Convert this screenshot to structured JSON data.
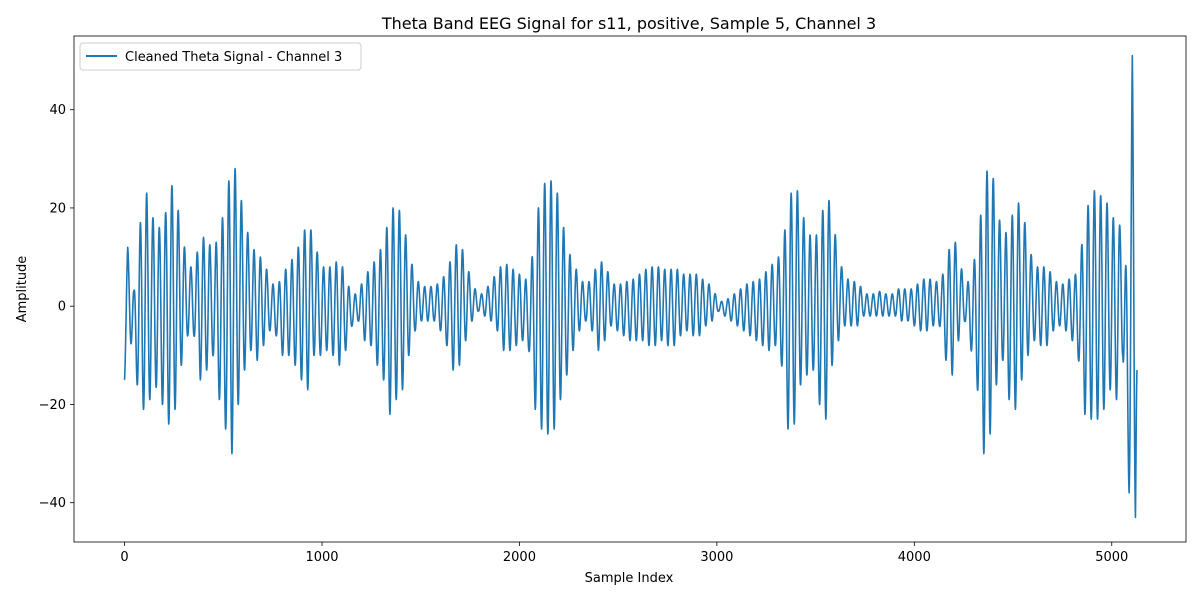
{
  "chart_data": {
    "type": "line",
    "title": "Theta Band EEG Signal for s11, positive, Sample 5, Channel 3",
    "xlabel": "Sample Index",
    "ylabel": "Amplitude",
    "xlim": [
      -256,
      5376
    ],
    "ylim": [
      -48,
      55
    ],
    "xticks": [
      0,
      1000,
      2000,
      3000,
      4000,
      5000
    ],
    "yticks": [
      -40,
      -20,
      0,
      20,
      40
    ],
    "xtick_labels": [
      "0",
      "1000",
      "2000",
      "3000",
      "4000",
      "5000"
    ],
    "ytick_labels": [
      "−40",
      "−20",
      "0",
      "20",
      "40"
    ],
    "grid": false,
    "legend_position": "top-left",
    "series": [
      {
        "name": "Cleaned Theta Signal - Channel 3",
        "color": "#1f77b4",
        "cycle_length": 32,
        "envelope_keyframes": [
          [
            0,
            -1,
            -15
          ],
          [
            16,
            12,
            -3
          ],
          [
            48,
            3,
            -12
          ],
          [
            80,
            17,
            -20
          ],
          [
            112,
            23,
            -22
          ],
          [
            144,
            18,
            -16
          ],
          [
            176,
            16,
            -17
          ],
          [
            208,
            19,
            -23
          ],
          [
            224,
            26,
            -24
          ],
          [
            256,
            23,
            -21
          ],
          [
            288,
            16,
            -12
          ],
          [
            320,
            8,
            -6
          ],
          [
            352,
            8,
            -6
          ],
          [
            384,
            14,
            -15
          ],
          [
            416,
            14,
            -13
          ],
          [
            448,
            11,
            -10
          ],
          [
            480,
            15,
            -19
          ],
          [
            512,
            21,
            -25
          ],
          [
            544,
            30,
            -30
          ],
          [
            576,
            26,
            -20
          ],
          [
            608,
            17,
            -13
          ],
          [
            640,
            13,
            -9
          ],
          [
            672,
            10,
            -11
          ],
          [
            704,
            10,
            -8
          ],
          [
            736,
            5,
            -5
          ],
          [
            768,
            4,
            -6
          ],
          [
            800,
            6,
            -10
          ],
          [
            832,
            9,
            -10
          ],
          [
            864,
            10,
            -12
          ],
          [
            896,
            14,
            -15
          ],
          [
            928,
            17,
            -17
          ],
          [
            960,
            14,
            -10
          ],
          [
            992,
            8,
            -10
          ],
          [
            1024,
            8,
            -9
          ],
          [
            1056,
            8,
            -10
          ],
          [
            1088,
            10,
            -12
          ],
          [
            1120,
            6,
            -9
          ],
          [
            1152,
            2,
            -4
          ],
          [
            1184,
            3,
            -3
          ],
          [
            1216,
            6,
            -7
          ],
          [
            1248,
            8,
            -8
          ],
          [
            1280,
            10,
            -12
          ],
          [
            1312,
            13,
            -15
          ],
          [
            1344,
            19,
            -22
          ],
          [
            1376,
            21,
            -19
          ],
          [
            1408,
            18,
            -17
          ],
          [
            1440,
            11,
            -10
          ],
          [
            1472,
            6,
            -5
          ],
          [
            1504,
            4,
            -3
          ],
          [
            1536,
            4,
            -3
          ],
          [
            1568,
            4,
            -3
          ],
          [
            1600,
            5,
            -5
          ],
          [
            1632,
            7,
            -8
          ],
          [
            1664,
            11,
            -13
          ],
          [
            1696,
            14,
            -12
          ],
          [
            1728,
            9,
            -7
          ],
          [
            1760,
            5,
            -3
          ],
          [
            1792,
            2,
            -1
          ],
          [
            1824,
            3,
            -2
          ],
          [
            1856,
            5,
            -3
          ],
          [
            1888,
            7,
            -5
          ],
          [
            1920,
            9,
            -9
          ],
          [
            1952,
            8,
            -9
          ],
          [
            1984,
            7,
            -8
          ],
          [
            2016,
            6,
            -7
          ],
          [
            2048,
            5,
            -9
          ],
          [
            2080,
            15,
            -21
          ],
          [
            2112,
            25,
            -25
          ],
          [
            2144,
            25,
            -26
          ],
          [
            2176,
            26,
            -25
          ],
          [
            2208,
            20,
            -19
          ],
          [
            2240,
            12,
            -14
          ],
          [
            2272,
            9,
            -9
          ],
          [
            2304,
            6,
            -5
          ],
          [
            2336,
            4,
            -3
          ],
          [
            2368,
            6,
            -5
          ],
          [
            2400,
            9,
            -9
          ],
          [
            2432,
            9,
            -7
          ],
          [
            2464,
            5,
            -4
          ],
          [
            2496,
            4,
            -5
          ],
          [
            2528,
            5,
            -6
          ],
          [
            2560,
            5,
            -7
          ],
          [
            2592,
            6,
            -7
          ],
          [
            2624,
            7,
            -7
          ],
          [
            2656,
            8,
            -8
          ],
          [
            2688,
            8,
            -8
          ],
          [
            2720,
            8,
            -7
          ],
          [
            2752,
            7,
            -8
          ],
          [
            2784,
            8,
            -8
          ],
          [
            2816,
            7,
            -6
          ],
          [
            2848,
            6,
            -5
          ],
          [
            2880,
            7,
            -6
          ],
          [
            2912,
            6,
            -6
          ],
          [
            2944,
            5,
            -4
          ],
          [
            2976,
            4,
            -3
          ],
          [
            3008,
            1,
            -1
          ],
          [
            3040,
            1,
            -2
          ],
          [
            3072,
            2,
            -3
          ],
          [
            3104,
            3,
            -4
          ],
          [
            3136,
            4,
            -5
          ],
          [
            3168,
            5,
            -6
          ],
          [
            3200,
            5,
            -7
          ],
          [
            3232,
            6,
            -8
          ],
          [
            3264,
            8,
            -9
          ],
          [
            3296,
            9,
            -8
          ],
          [
            3328,
            11,
            -12
          ],
          [
            3360,
            20,
            -25
          ],
          [
            3392,
            26,
            -24
          ],
          [
            3424,
            21,
            -16
          ],
          [
            3456,
            15,
            -14
          ],
          [
            3488,
            14,
            -13
          ],
          [
            3520,
            15,
            -20
          ],
          [
            3552,
            24,
            -23
          ],
          [
            3584,
            19,
            -12
          ],
          [
            3616,
            10,
            -7
          ],
          [
            3648,
            6,
            -4
          ],
          [
            3680,
            5,
            -4
          ],
          [
            3712,
            5,
            -4
          ],
          [
            3744,
            3,
            -2
          ],
          [
            3776,
            2,
            -2
          ],
          [
            3808,
            3,
            -2
          ],
          [
            3840,
            3,
            -2
          ],
          [
            3872,
            2,
            -2
          ],
          [
            3904,
            3,
            -2
          ],
          [
            3936,
            4,
            -3
          ],
          [
            3968,
            3,
            -3
          ],
          [
            4000,
            4,
            -4
          ],
          [
            4032,
            5,
            -5
          ],
          [
            4064,
            6,
            -5
          ],
          [
            4096,
            5,
            -4
          ],
          [
            4128,
            5,
            -4
          ],
          [
            4160,
            8,
            -11
          ],
          [
            4192,
            15,
            -14
          ],
          [
            4224,
            11,
            -7
          ],
          [
            4256,
            4,
            -3
          ],
          [
            4288,
            6,
            -9
          ],
          [
            4320,
            13,
            -17
          ],
          [
            4352,
            24,
            -30
          ],
          [
            4384,
            31,
            -26
          ],
          [
            4416,
            21,
            -16
          ],
          [
            4448,
            14,
            -11
          ],
          [
            4480,
            16,
            -19
          ],
          [
            4512,
            21,
            -21
          ],
          [
            4544,
            21,
            -15
          ],
          [
            4576,
            13,
            -10
          ],
          [
            4608,
            8,
            -7
          ],
          [
            4640,
            8,
            -8
          ],
          [
            4672,
            8,
            -8
          ],
          [
            4704,
            6,
            -5
          ],
          [
            4736,
            4,
            -4
          ],
          [
            4768,
            5,
            -5
          ],
          [
            4800,
            6,
            -7
          ],
          [
            4832,
            7,
            -11
          ],
          [
            4864,
            18,
            -22
          ],
          [
            4896,
            23,
            -23
          ],
          [
            4928,
            24,
            -23
          ],
          [
            4960,
            21,
            -21
          ],
          [
            4992,
            21,
            -17
          ],
          [
            5024,
            15,
            -19
          ],
          [
            5056,
            18,
            -10
          ],
          [
            5072,
            8,
            -30
          ],
          [
            5088,
            0,
            -38
          ],
          [
            5104,
            51,
            -20
          ],
          [
            5120,
            10,
            -43
          ],
          [
            5128,
            -13,
            -13
          ]
        ]
      }
    ]
  }
}
